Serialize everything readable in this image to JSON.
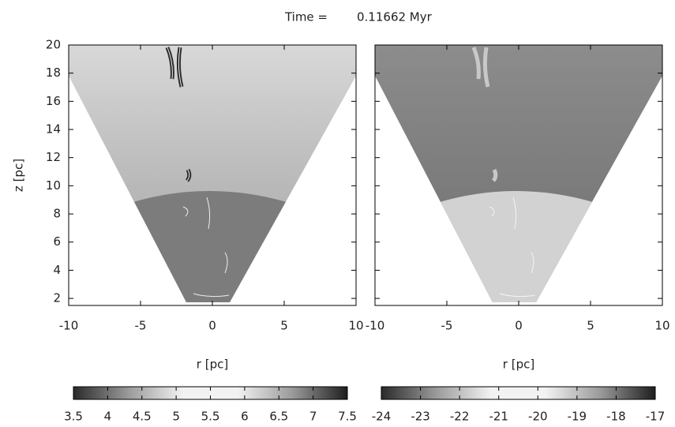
{
  "title": "Time =",
  "time": "0.11662 Myr",
  "chart_data": [
    {
      "type": "image",
      "xlabel": "r [pc]",
      "ylabel": "z [pc]",
      "xlim": [
        -10,
        10
      ],
      "ylim": [
        1.5,
        20
      ],
      "xticks": [
        -10,
        -5,
        0,
        5,
        10
      ],
      "yticks": [
        2,
        4,
        6,
        8,
        10,
        12,
        14,
        16,
        18,
        20
      ],
      "colorbar": {
        "lim": [
          3.5,
          7.5
        ],
        "ticks": [
          3.5,
          4,
          4.5,
          5,
          5.5,
          6,
          6.5,
          7,
          7.5
        ],
        "colors": [
          "#2a2a2a",
          "#9a9a9a",
          "#f2f2f2",
          "#f2f2f2",
          "#9a9a9a",
          "#1e1e1e"
        ]
      }
    },
    {
      "type": "image",
      "xlabel": "r [pc]",
      "xlim": [
        -10,
        10
      ],
      "ylim": [
        1.5,
        20
      ],
      "xticks": [
        -10,
        -5,
        0,
        5,
        10
      ],
      "yticks": [
        2,
        4,
        6,
        8,
        10,
        12,
        14,
        16,
        18,
        20
      ],
      "colorbar": {
        "lim": [
          -24,
          -17
        ],
        "ticks": [
          -24,
          -23,
          -22,
          -21,
          -20,
          -19,
          -18,
          -17
        ],
        "colors": [
          "#2a2a2a",
          "#9a9a9a",
          "#f2f2f2",
          "#f2f2f2",
          "#9a9a9a",
          "#1e1e1e"
        ]
      }
    }
  ]
}
